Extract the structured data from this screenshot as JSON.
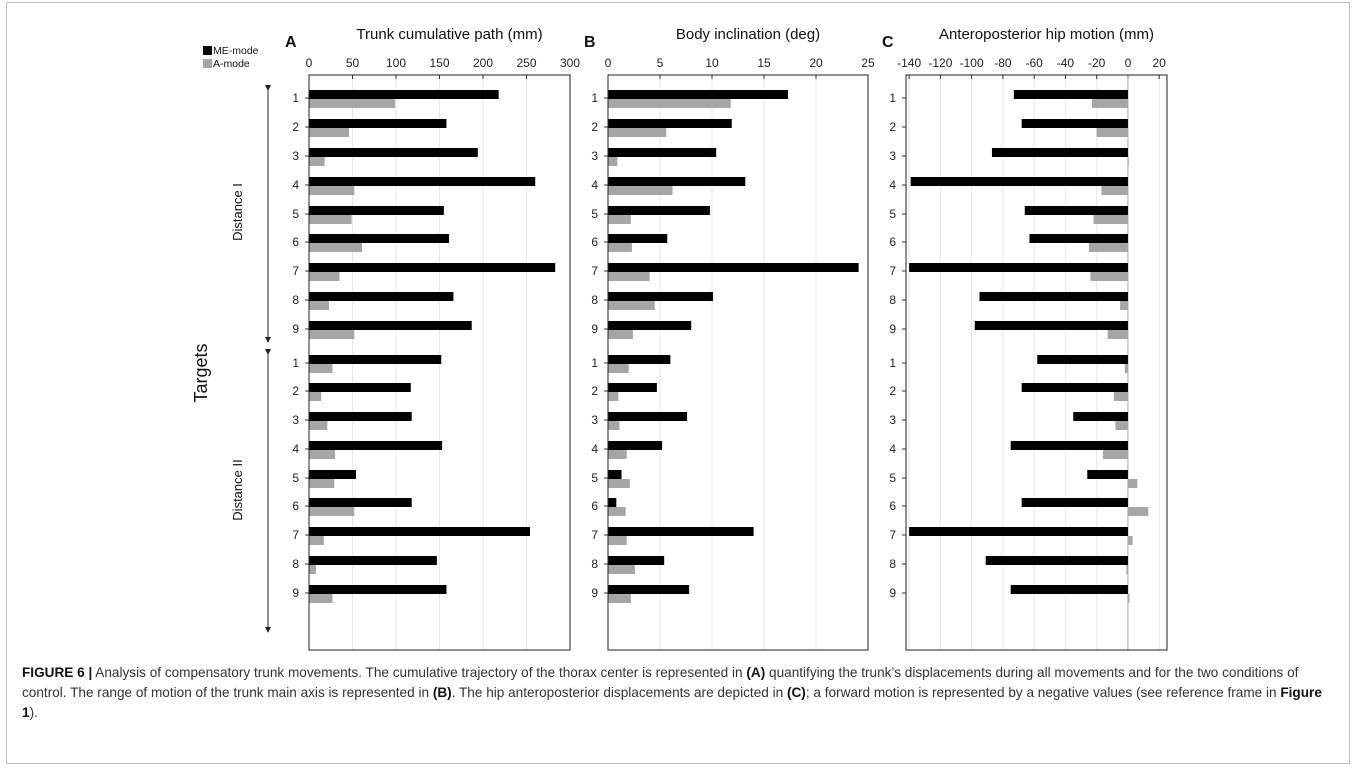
{
  "legend": {
    "entries": [
      {
        "label": "ME-mode",
        "color": "#000000"
      },
      {
        "label": "A-mode",
        "color": "#a6a6a6"
      }
    ]
  },
  "y_axis_label": "Targets",
  "group_labels": [
    "Distance I",
    "Distance II"
  ],
  "target_labels": [
    "1",
    "2",
    "3",
    "4",
    "5",
    "6",
    "7",
    "8",
    "9"
  ],
  "chart_data": [
    {
      "type": "bar",
      "panel": "A",
      "title": "Trunk cumulative path (mm)",
      "xlim": [
        0,
        300
      ],
      "xticks": [
        0,
        50,
        100,
        150,
        200,
        250,
        300
      ],
      "grid": true,
      "groups": [
        "Distance I",
        "Distance II"
      ],
      "categories": [
        "1",
        "2",
        "3",
        "4",
        "5",
        "6",
        "7",
        "8",
        "9"
      ],
      "series": [
        {
          "name": "ME-mode",
          "color": "#000000",
          "values": [
            [
              218,
              158,
              194,
              260,
              155,
              161,
              283,
              166,
              187
            ],
            [
              152,
              117,
              118,
              153,
              54,
              118,
              254,
              147,
              158
            ]
          ]
        },
        {
          "name": "A-mode",
          "color": "#a6a6a6",
          "values": [
            [
              99,
              46,
              18,
              52,
              49,
              61,
              35,
              23,
              52
            ],
            [
              27,
              14,
              21,
              30,
              29,
              52,
              17,
              8,
              27
            ]
          ]
        }
      ]
    },
    {
      "type": "bar",
      "panel": "B",
      "title": "Body inclination (deg)",
      "xlim": [
        0,
        25
      ],
      "xticks": [
        0,
        5,
        10,
        15,
        20,
        25
      ],
      "grid": true,
      "groups": [
        "Distance I",
        "Distance II"
      ],
      "categories": [
        "1",
        "2",
        "3",
        "4",
        "5",
        "6",
        "7",
        "8",
        "9"
      ],
      "series": [
        {
          "name": "ME-mode",
          "color": "#000000",
          "values": [
            [
              17.3,
              11.9,
              10.4,
              13.2,
              9.8,
              5.7,
              24.1,
              10.1,
              8.0
            ],
            [
              6.0,
              4.7,
              7.6,
              5.2,
              1.3,
              0.8,
              14.0,
              5.4,
              7.8
            ]
          ]
        },
        {
          "name": "A-mode",
          "color": "#a6a6a6",
          "values": [
            [
              11.8,
              5.6,
              0.9,
              6.2,
              2.2,
              2.3,
              4.0,
              4.5,
              2.4
            ],
            [
              2.0,
              1.0,
              1.1,
              1.8,
              2.1,
              1.7,
              1.8,
              2.6,
              2.2
            ]
          ]
        }
      ]
    },
    {
      "type": "bar",
      "panel": "C",
      "title": "Anteroposterior hip motion (mm)",
      "xlim": [
        -142,
        25
      ],
      "xticks": [
        -140,
        -120,
        -100,
        -80,
        -60,
        -40,
        -20,
        0,
        20
      ],
      "grid": true,
      "groups": [
        "Distance I",
        "Distance II"
      ],
      "categories": [
        "1",
        "2",
        "3",
        "4",
        "5",
        "6",
        "7",
        "8",
        "9"
      ],
      "series": [
        {
          "name": "ME-mode",
          "color": "#000000",
          "values": [
            [
              -73,
              -68,
              -87,
              -139,
              -66,
              -63,
              -140,
              -95,
              -98
            ],
            [
              -58,
              -68,
              -35,
              -75,
              -26,
              -68,
              -140,
              -91,
              -75
            ]
          ]
        },
        {
          "name": "A-mode",
          "color": "#a6a6a6",
          "values": [
            [
              -23,
              -20,
              0.5,
              -17,
              -22,
              -25,
              -24,
              -5,
              -13
            ],
            [
              -2,
              -9,
              -8,
              -16,
              6,
              13,
              3,
              -1,
              1
            ]
          ]
        }
      ]
    }
  ],
  "caption": {
    "label": "FIGURE 6 |",
    "text1": " Analysis of compensatory trunk movements. The cumulative trajectory of the thorax center is represented in ",
    "ref_a": "(A)",
    "text2": " quantifying the trunk’s displacements during all movements and for the two conditions of control. The range of motion of the trunk main axis is represented in ",
    "ref_b": "(B)",
    "text3": ". The hip anteroposterior displacements are depicted in ",
    "ref_c": "(C)",
    "text4": "; a forward motion is represented by a negative values (see reference frame in ",
    "ref_fig": "Figure 1",
    "text5": ")."
  }
}
